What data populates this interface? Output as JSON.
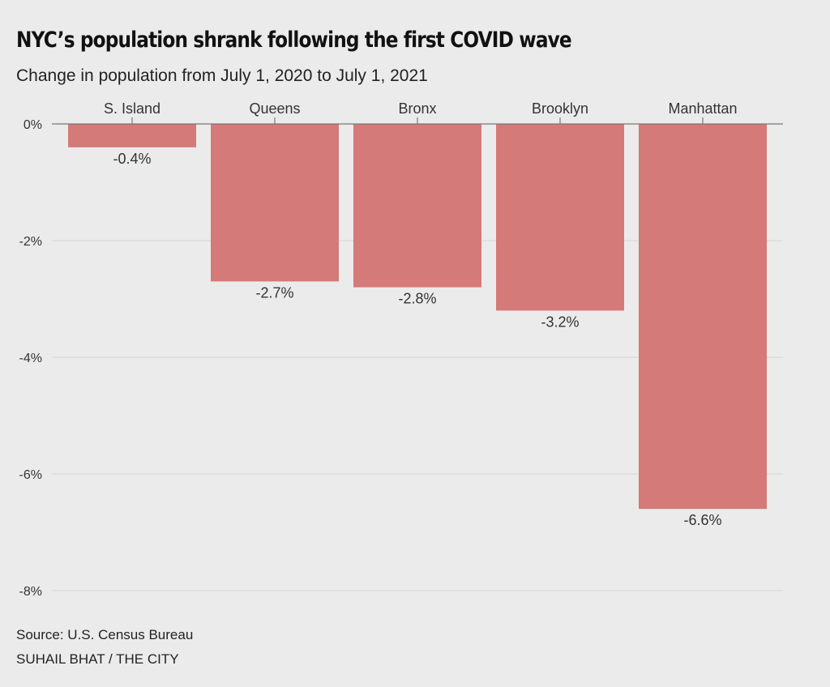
{
  "header": {
    "title": "NYC’s population shrank following the first COVID wave",
    "subtitle": "Change in population from July 1, 2020 to July 1, 2021"
  },
  "footer": {
    "source": "Source: U.S. Census Bureau",
    "credit": "SUHAIL BHAT / THE CITY"
  },
  "colors": {
    "bar": "#d47a78",
    "gridline": "#d6d6d6",
    "axis": "#777777",
    "label": "#333333"
  },
  "chart_data": {
    "type": "bar",
    "title": "NYC’s population shrank following the first COVID wave",
    "subtitle": "Change in population from July 1, 2020 to July 1, 2021",
    "xlabel": "",
    "ylabel": "",
    "categories": [
      "S. Island",
      "Queens",
      "Bronx",
      "Brooklyn",
      "Manhattan"
    ],
    "values": [
      -0.4,
      -2.7,
      -2.8,
      -3.2,
      -6.6
    ],
    "value_labels": [
      "-0.4%",
      "-2.7%",
      "-2.8%",
      "-3.2%",
      "-6.6%"
    ],
    "ylim": [
      -8,
      0
    ],
    "yticks": [
      0,
      -2,
      -4,
      -6,
      -8
    ],
    "ytick_labels": [
      "0%",
      "-2%",
      "-4%",
      "-6%",
      "-8%"
    ],
    "grid": true,
    "category_axis_position": "top",
    "legend": "none"
  }
}
